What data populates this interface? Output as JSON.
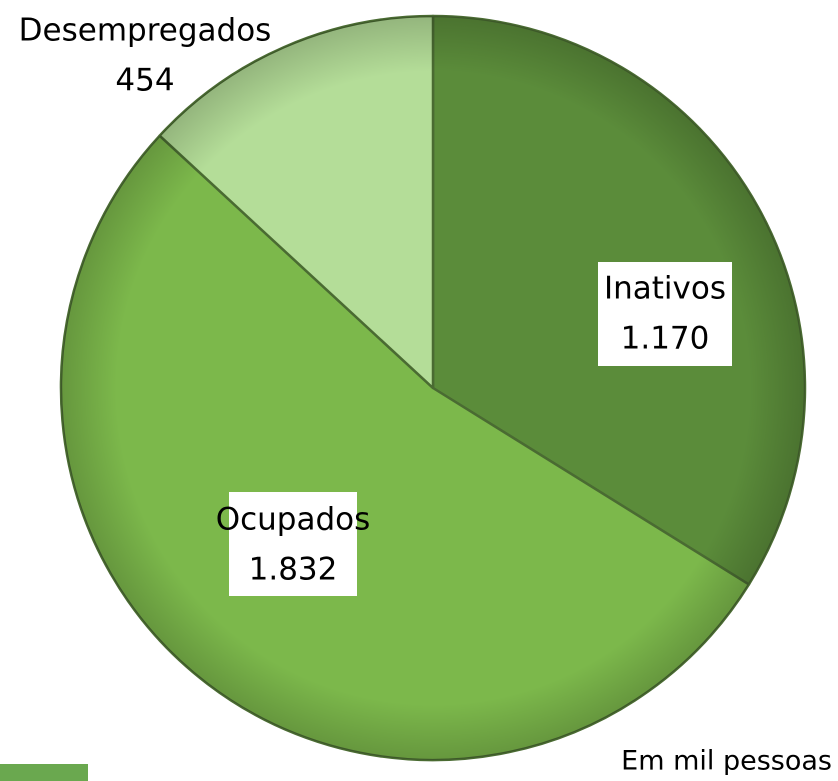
{
  "chart_data": {
    "type": "pie",
    "categories": [
      "Inativos",
      "Ocupados",
      "Desempregados"
    ],
    "values": [
      1170,
      1832,
      454
    ],
    "value_labels": [
      "1.170",
      "1.832",
      "454"
    ],
    "colors": [
      "#5b8c3a",
      "#7cb84b",
      "#b4dd98"
    ],
    "annotation": "Em mil pessoas"
  }
}
